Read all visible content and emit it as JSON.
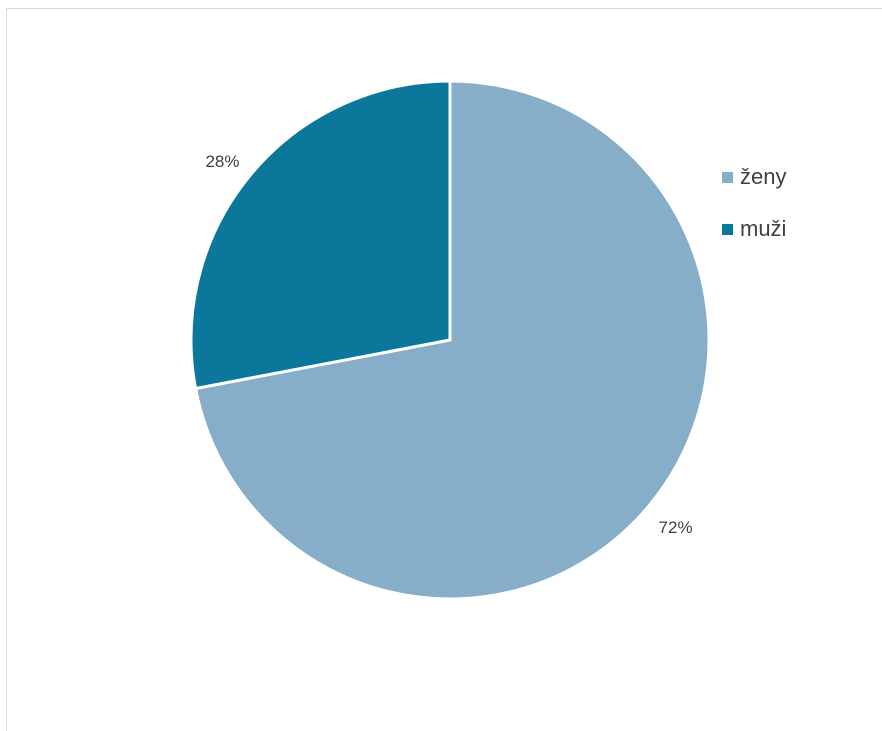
{
  "chart_data": {
    "type": "pie",
    "categories": [
      "ženy",
      "muži"
    ],
    "values": [
      72,
      28
    ],
    "data_labels": [
      "72%",
      "28%"
    ],
    "colors": [
      "#87aec8",
      "#0b789b"
    ],
    "legend": {
      "placement": "right",
      "entries": [
        "ženy",
        "muži"
      ]
    }
  }
}
